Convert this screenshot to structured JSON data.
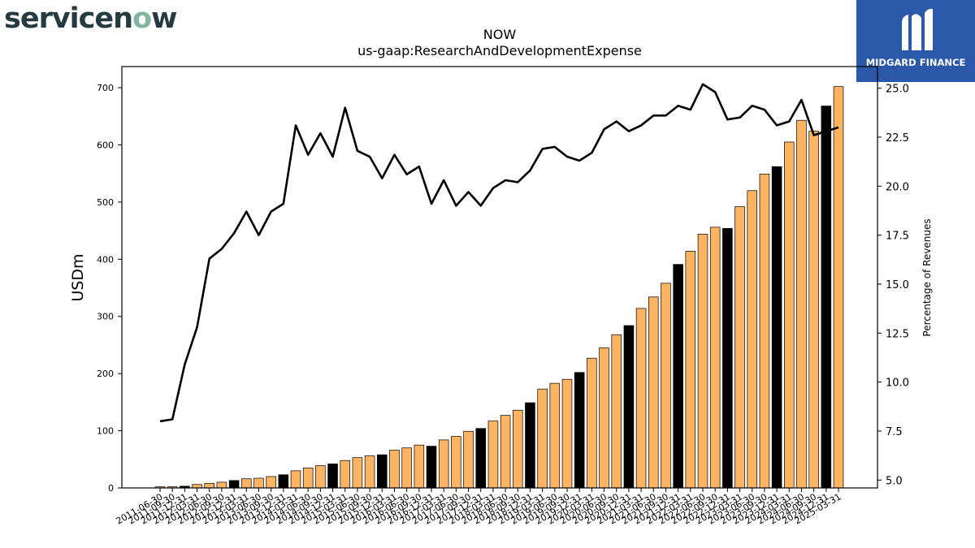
{
  "logos": {
    "left_brand": "servicenow",
    "right_brand": "MIDGARD FINANCE",
    "right_brand_bg": "#2b58a8"
  },
  "colors": {
    "bar_default": "#fdb462",
    "bar_highlight": "#000000",
    "line": "#000000"
  },
  "chart_data": {
    "type": "bar",
    "title": "NOW",
    "subtitle": "us-gaap:ResearchAndDevelopmentExpense",
    "ylabel": "USDm",
    "y2label": "Percentage of Revenues",
    "ylim": [
      0,
      737
    ],
    "y2lim": [
      4.6,
      26.1
    ],
    "yticks": [
      0,
      100,
      200,
      300,
      400,
      500,
      600,
      700
    ],
    "y2ticks": [
      "5.0",
      "7.5",
      "10.0",
      "12.5",
      "15.0",
      "17.5",
      "20.0",
      "22.5",
      "25.0"
    ],
    "categories": [
      "2011-06-30",
      "2011-09-30",
      "2011-12-31",
      "2012-03-31",
      "2012-06-30",
      "2012-09-30",
      "2012-12-31",
      "2013-03-31",
      "2013-06-30",
      "2013-09-30",
      "2013-12-31",
      "2014-03-31",
      "2014-06-30",
      "2014-09-30",
      "2014-12-31",
      "2015-03-31",
      "2015-06-30",
      "2015-09-30",
      "2015-12-31",
      "2016-03-31",
      "2016-06-30",
      "2016-09-30",
      "2016-12-31",
      "2017-03-31",
      "2017-06-30",
      "2017-09-30",
      "2017-12-31",
      "2018-03-31",
      "2018-06-30",
      "2018-09-30",
      "2018-12-31",
      "2019-03-31",
      "2019-06-30",
      "2019-09-30",
      "2019-12-31",
      "2020-03-31",
      "2020-06-30",
      "2020-09-30",
      "2020-12-31",
      "2021-03-31",
      "2021-06-30",
      "2021-09-30",
      "2021-12-31",
      "2022-03-31",
      "2022-06-30",
      "2022-09-30",
      "2022-12-31",
      "2023-03-31",
      "2023-06-30",
      "2023-09-30",
      "2023-12-31",
      "2024-03-31",
      "2024-06-30",
      "2024-09-30",
      "2024-12-31",
      "2025-03-31"
    ],
    "xtick_labels": [
      "2011-06-30",
      "2011-09-30",
      "2011-12-31",
      "2012-03-31",
      "2012-06-30",
      "2012-09-30",
      "2012-12-31",
      "2013-03-31",
      "2013-06-30",
      "2013-09-30",
      "2013-12-31",
      "2014-03-31",
      "2014-06-30",
      "2014-09-30",
      "2014-12-31",
      "2015-03-31",
      "2015-06-30",
      "2015-09-30",
      "2015-12-31",
      "2016-03-31",
      "2016-06-30",
      "2016-09-30",
      "2016-12-31",
      "2017-03-31",
      "2017-06-30",
      "2017-09-30",
      "2017-12-31",
      "2018-03-31",
      "2018-06-30",
      "2018-09-30",
      "2018-12-31",
      "2019-03-31",
      "2019-06-30",
      "2019-09-30",
      "2019-12-31",
      "2020-03-31",
      "2020-06-30",
      "2020-09-30",
      "2020-12-31",
      "2021-03-31",
      "2021-06-30",
      "2021-09-30",
      "2021-12-31",
      "2022-03-31",
      "2022-06-30",
      "2022-09-30",
      "2022-12-31",
      "2023-03-31",
      "2023-06-30",
      "2023-09-30",
      "2023-12-31",
      "2024-03-31",
      "2024-06-30",
      "2024-09-30",
      "2024-12-31",
      "2025-03-31"
    ],
    "bars": [
      2,
      2,
      3,
      6,
      8,
      10,
      13,
      16,
      17,
      20,
      23,
      30,
      35,
      39,
      42,
      48,
      53,
      56,
      58,
      66,
      70,
      75,
      73,
      84,
      90,
      99,
      104,
      117,
      127,
      136,
      149,
      173,
      183,
      190,
      202,
      227,
      245,
      268,
      284,
      314,
      334,
      358,
      391,
      414,
      444,
      456,
      454,
      492,
      520,
      549,
      562,
      605,
      643,
      624,
      668,
      702
    ],
    "highlight": [
      false,
      false,
      true,
      false,
      false,
      false,
      true,
      false,
      false,
      false,
      true,
      false,
      false,
      false,
      true,
      false,
      false,
      false,
      true,
      false,
      false,
      false,
      true,
      false,
      false,
      false,
      true,
      false,
      false,
      false,
      true,
      false,
      false,
      false,
      true,
      false,
      false,
      false,
      true,
      false,
      false,
      false,
      true,
      false,
      false,
      false,
      true,
      false,
      false,
      false,
      true,
      false,
      false,
      false,
      true,
      false
    ],
    "line_pct": [
      8.0,
      8.1,
      10.9,
      12.8,
      16.3,
      16.8,
      17.6,
      18.7,
      17.5,
      18.7,
      19.1,
      23.1,
      21.6,
      22.7,
      21.5,
      24.0,
      21.8,
      21.5,
      20.4,
      21.6,
      20.6,
      21.0,
      19.1,
      20.3,
      19.0,
      19.7,
      19.0,
      19.9,
      20.3,
      20.2,
      20.8,
      21.9,
      22.0,
      21.5,
      21.3,
      21.7,
      22.9,
      23.3,
      22.8,
      23.1,
      23.6,
      23.6,
      24.1,
      23.9,
      25.2,
      24.8,
      23.4,
      23.5,
      24.1,
      23.9,
      23.1,
      23.3,
      24.4,
      22.6,
      22.8,
      23.0
    ]
  }
}
